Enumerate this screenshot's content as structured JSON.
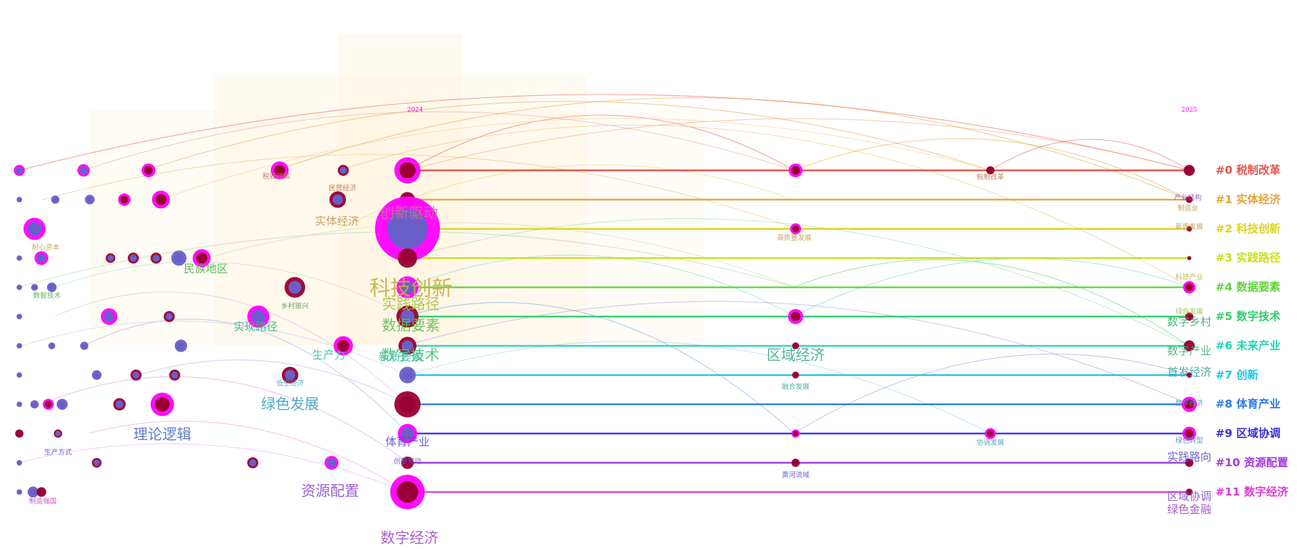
{
  "chart_data": {
    "type": "timeline",
    "years": [
      "2024",
      "2025"
    ],
    "clusters": [
      {
        "id": 0,
        "label": "#0 税制改革",
        "color": "#e6554c"
      },
      {
        "id": 1,
        "label": "#1 实体经济",
        "color": "#e6a23c"
      },
      {
        "id": 2,
        "label": "#2 科技创新",
        "color": "#e0d21e"
      },
      {
        "id": 3,
        "label": "#3 实践路径",
        "color": "#c8e01a"
      },
      {
        "id": 4,
        "label": "#4 数据要素",
        "color": "#5ed63a"
      },
      {
        "id": 5,
        "label": "#5 数字技术",
        "color": "#2fcf6a"
      },
      {
        "id": 6,
        "label": "#6 未来产业",
        "color": "#25d6b0"
      },
      {
        "id": 7,
        "label": "#7 创新",
        "color": "#1ec8e6"
      },
      {
        "id": 8,
        "label": "#8 体育产业",
        "color": "#2f7ae0"
      },
      {
        "id": 9,
        "label": "#9 区域协调",
        "color": "#3a2fd6"
      },
      {
        "id": 10,
        "label": "#10 资源配置",
        "color": "#a33ae0"
      },
      {
        "id": 11,
        "label": "#11 数字经济",
        "color": "#e03ad6"
      }
    ],
    "keywords": [
      {
        "text": "税收政策",
        "size": "small",
        "color": "#c07a50"
      },
      {
        "text": "民营经济",
        "size": "small",
        "color": "#c07a50"
      },
      {
        "text": "实体经济",
        "size": "medium",
        "color": "#c09a50"
      },
      {
        "text": "创新驱动",
        "size": "large",
        "color": "#d06aa0"
      },
      {
        "text": "科技创新",
        "size": "xlarge",
        "color": "#c8b040"
      },
      {
        "text": "实践路径",
        "size": "large",
        "color": "#a8c040"
      },
      {
        "text": "数据要素",
        "size": "large",
        "color": "#60c050"
      },
      {
        "text": "数字技术",
        "size": "large",
        "color": "#40c070"
      },
      {
        "text": "生产力",
        "size": "medium",
        "color": "#40c0a0"
      },
      {
        "text": "新质要素",
        "size": "medium",
        "color": "#40c0a0"
      },
      {
        "text": "低空经济",
        "size": "small",
        "color": "#40a0c0"
      },
      {
        "text": "绿色发展",
        "size": "large",
        "color": "#40a0c8"
      },
      {
        "text": "理论逻辑",
        "size": "large",
        "color": "#5070c8"
      },
      {
        "text": "生产方式",
        "size": "small",
        "color": "#6050c8"
      },
      {
        "text": "体育产业",
        "size": "medium",
        "color": "#5050d0"
      },
      {
        "text": "创新驱动",
        "size": "small",
        "color": "#7050d0"
      },
      {
        "text": "资源配置",
        "size": "large",
        "color": "#9050d0"
      },
      {
        "text": "数字经济",
        "size": "large",
        "color": "#a050c8"
      },
      {
        "text": "制造强国",
        "size": "small",
        "color": "#c050c0"
      },
      {
        "text": "民族地区",
        "size": "medium",
        "color": "#50b050"
      },
      {
        "text": "乡村振兴",
        "size": "small",
        "color": "#50a050"
      },
      {
        "text": "实现路径",
        "size": "medium",
        "color": "#40b090"
      },
      {
        "text": "数智技术",
        "size": "small",
        "color": "#50b050"
      },
      {
        "text": "耐心资本",
        "size": "small",
        "color": "#c0a040"
      },
      {
        "text": "税制改革",
        "size": "small",
        "color": "#c07a50"
      },
      {
        "text": "高质量发展",
        "size": "small",
        "color": "#c0a040"
      },
      {
        "text": "区域经济",
        "size": "large",
        "color": "#40b090"
      },
      {
        "text": "融合发展",
        "size": "small",
        "color": "#40a0a0"
      },
      {
        "text": "协调发展",
        "size": "small",
        "color": "#40a0c0"
      },
      {
        "text": "黄河流域",
        "size": "small",
        "color": "#6050c8"
      },
      {
        "text": "产业结构",
        "size": "small",
        "color": "#9050c8"
      },
      {
        "text": "制造业",
        "size": "small",
        "color": "#c09050"
      },
      {
        "text": "新质发展",
        "size": "small",
        "color": "#c09050"
      },
      {
        "text": "科技产业",
        "size": "small",
        "color": "#c0b040"
      },
      {
        "text": "绿色发展",
        "size": "small",
        "color": "#a0c040"
      },
      {
        "text": "数字乡村",
        "size": "medium",
        "color": "#40b070"
      },
      {
        "text": "数字产业",
        "size": "medium",
        "color": "#40b070"
      },
      {
        "text": "首发经济",
        "size": "medium",
        "color": "#40a0a0"
      },
      {
        "text": "数字经济",
        "size": "small",
        "color": "#40a0c0"
      },
      {
        "text": "绿色转型",
        "size": "small",
        "color": "#5080c8"
      },
      {
        "text": "实践路向",
        "size": "medium",
        "color": "#6050c8"
      },
      {
        "text": "区域协调",
        "size": "medium",
        "color": "#8050c8"
      },
      {
        "text": "绿色金融",
        "size": "medium",
        "color": "#a050c0"
      },
      {
        "text": "新动能",
        "size": "small",
        "color": "#c050c0"
      }
    ]
  }
}
